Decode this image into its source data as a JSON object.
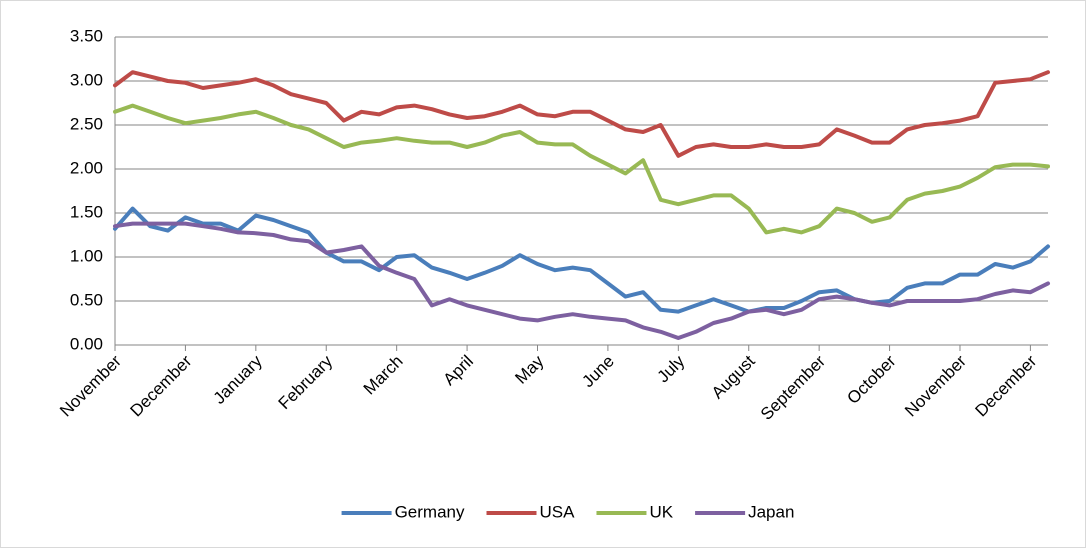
{
  "chart_data": {
    "type": "line",
    "categories": [
      "November",
      null,
      null,
      null,
      "December",
      null,
      null,
      null,
      "January",
      null,
      null,
      null,
      "February",
      null,
      null,
      null,
      "March",
      null,
      null,
      null,
      "April",
      null,
      null,
      null,
      "May",
      null,
      null,
      null,
      "June",
      null,
      null,
      null,
      "July",
      null,
      null,
      null,
      "August",
      null,
      null,
      null,
      "September",
      null,
      null,
      null,
      "October",
      null,
      null,
      null,
      "November",
      null,
      null,
      null,
      "December",
      null
    ],
    "series": [
      {
        "name": "Germany",
        "color": "#4a7ebb",
        "values": [
          1.32,
          1.55,
          1.35,
          1.3,
          1.45,
          1.38,
          1.38,
          1.3,
          1.47,
          1.42,
          1.35,
          1.28,
          1.05,
          0.95,
          0.95,
          0.85,
          1.0,
          1.02,
          0.88,
          0.82,
          0.75,
          0.82,
          0.9,
          1.02,
          0.92,
          0.85,
          0.88,
          0.85,
          0.7,
          0.55,
          0.6,
          0.4,
          0.38,
          0.45,
          0.52,
          0.45,
          0.38,
          0.42,
          0.42,
          0.5,
          0.6,
          0.62,
          0.52,
          0.48,
          0.5,
          0.65,
          0.7,
          0.7,
          0.8,
          0.8,
          0.92,
          0.88,
          0.95,
          1.12
        ]
      },
      {
        "name": "USA",
        "color": "#be4b48",
        "values": [
          2.95,
          3.1,
          3.05,
          3.0,
          2.98,
          2.92,
          2.95,
          2.98,
          3.02,
          2.95,
          2.85,
          2.8,
          2.75,
          2.55,
          2.65,
          2.62,
          2.7,
          2.72,
          2.68,
          2.62,
          2.58,
          2.6,
          2.65,
          2.72,
          2.62,
          2.6,
          2.65,
          2.65,
          2.55,
          2.45,
          2.42,
          2.5,
          2.15,
          2.25,
          2.28,
          2.25,
          2.25,
          2.28,
          2.25,
          2.25,
          2.28,
          2.45,
          2.38,
          2.3,
          2.3,
          2.45,
          2.5,
          2.52,
          2.55,
          2.6,
          2.98,
          3.0,
          3.02,
          3.1
        ]
      },
      {
        "name": "UK",
        "color": "#98b954",
        "values": [
          2.65,
          2.72,
          2.65,
          2.58,
          2.52,
          2.55,
          2.58,
          2.62,
          2.65,
          2.58,
          2.5,
          2.45,
          2.35,
          2.25,
          2.3,
          2.32,
          2.35,
          2.32,
          2.3,
          2.3,
          2.25,
          2.3,
          2.38,
          2.42,
          2.3,
          2.28,
          2.28,
          2.15,
          2.05,
          1.95,
          2.1,
          1.65,
          1.6,
          1.65,
          1.7,
          1.7,
          1.55,
          1.28,
          1.32,
          1.28,
          1.35,
          1.55,
          1.5,
          1.4,
          1.45,
          1.65,
          1.72,
          1.75,
          1.8,
          1.9,
          2.02,
          2.05,
          2.05,
          2.03
        ]
      },
      {
        "name": "Japan",
        "color": "#7d60a0",
        "values": [
          1.35,
          1.38,
          1.38,
          1.38,
          1.38,
          1.35,
          1.32,
          1.28,
          1.27,
          1.25,
          1.2,
          1.18,
          1.05,
          1.08,
          1.12,
          0.9,
          0.82,
          0.75,
          0.45,
          0.52,
          0.45,
          0.4,
          0.35,
          0.3,
          0.28,
          0.32,
          0.35,
          0.32,
          0.3,
          0.28,
          0.2,
          0.15,
          0.08,
          0.15,
          0.25,
          0.3,
          0.38,
          0.4,
          0.35,
          0.4,
          0.52,
          0.55,
          0.52,
          0.48,
          0.45,
          0.5,
          0.5,
          0.5,
          0.5,
          0.52,
          0.58,
          0.62,
          0.6,
          0.7
        ]
      }
    ],
    "ylim": [
      0,
      3.5
    ],
    "yticks": [
      {
        "value": 0,
        "label": "0.00"
      },
      {
        "value": 0.5,
        "label": "0.50"
      },
      {
        "value": 1,
        "label": "1.00"
      },
      {
        "value": 1.5,
        "label": "1.50"
      },
      {
        "value": 2,
        "label": "2.00"
      },
      {
        "value": 2.5,
        "label": "2.50"
      },
      {
        "value": 3,
        "label": "3.00"
      },
      {
        "value": 3.5,
        "label": "3.50"
      }
    ],
    "grid": true,
    "legend": "bottom"
  }
}
